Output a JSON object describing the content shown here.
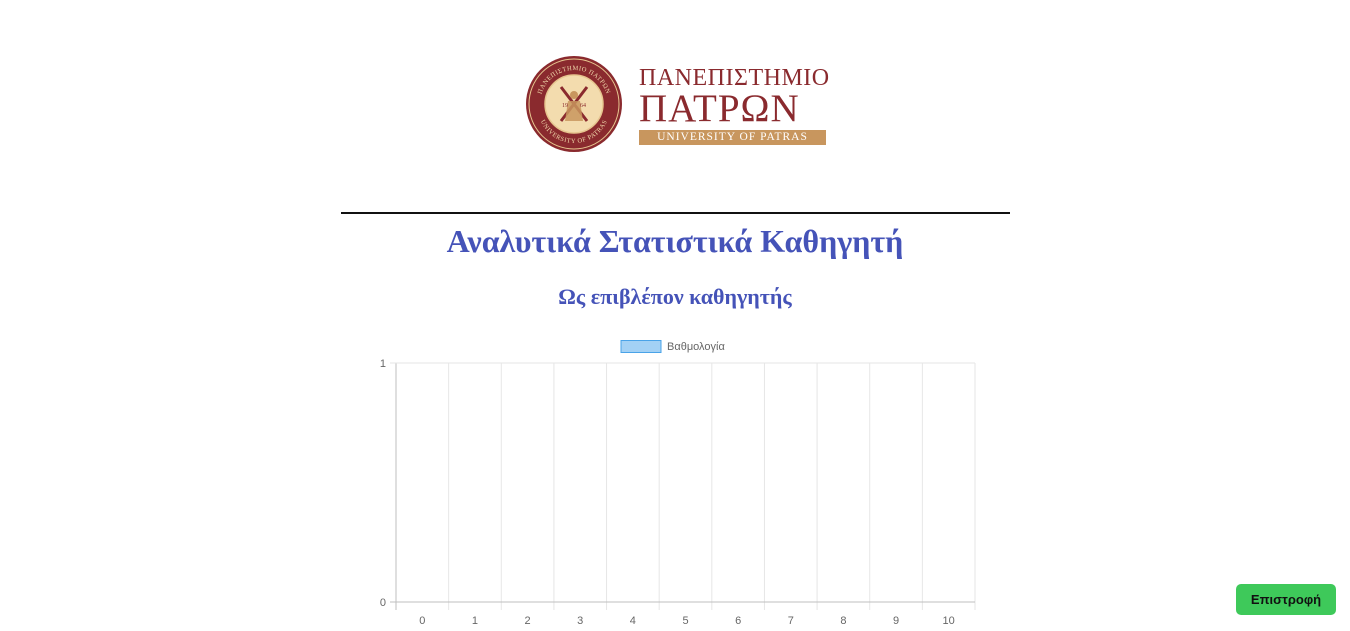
{
  "logo": {
    "seal_text_top": "ΠΑΝΕΠΙΣΤΗΜΙΟ ΠΑΤΡΩΝ",
    "seal_text_bottom": "UNIVERSITY OF PATRAS",
    "seal_year_left": "19",
    "seal_year_right": "64",
    "line1": "ΠΑΝΕΠΙΣΤΗΜΙΟ",
    "line2": "ΠΑΤΡΩΝ",
    "band": "UNIVERSITY OF PATRAS",
    "colors": {
      "maroon": "#8a2a2e",
      "gold": "#c8965e"
    }
  },
  "page": {
    "title": "Αναλυτικά Στατιστικά Καθηγητή",
    "subtitle": "Ως επιβλέπον καθηγητής"
  },
  "chart_data": {
    "type": "bar",
    "categories": [
      "0",
      "1",
      "2",
      "3",
      "4",
      "5",
      "6",
      "7",
      "8",
      "9",
      "10"
    ],
    "series": [
      {
        "name": "Βαθμολογία",
        "values": [
          0,
          0,
          0,
          0,
          0,
          0,
          0,
          0,
          0,
          0,
          0
        ],
        "color": "#a3d1f5",
        "border": "#4aa3e8"
      }
    ],
    "ylim": [
      0,
      1
    ],
    "yticks": [
      "0",
      "1"
    ],
    "grid": true,
    "legend": "top-center"
  },
  "actions": {
    "back_label": "Επιστροφή",
    "back_color": "#3ec95a"
  }
}
